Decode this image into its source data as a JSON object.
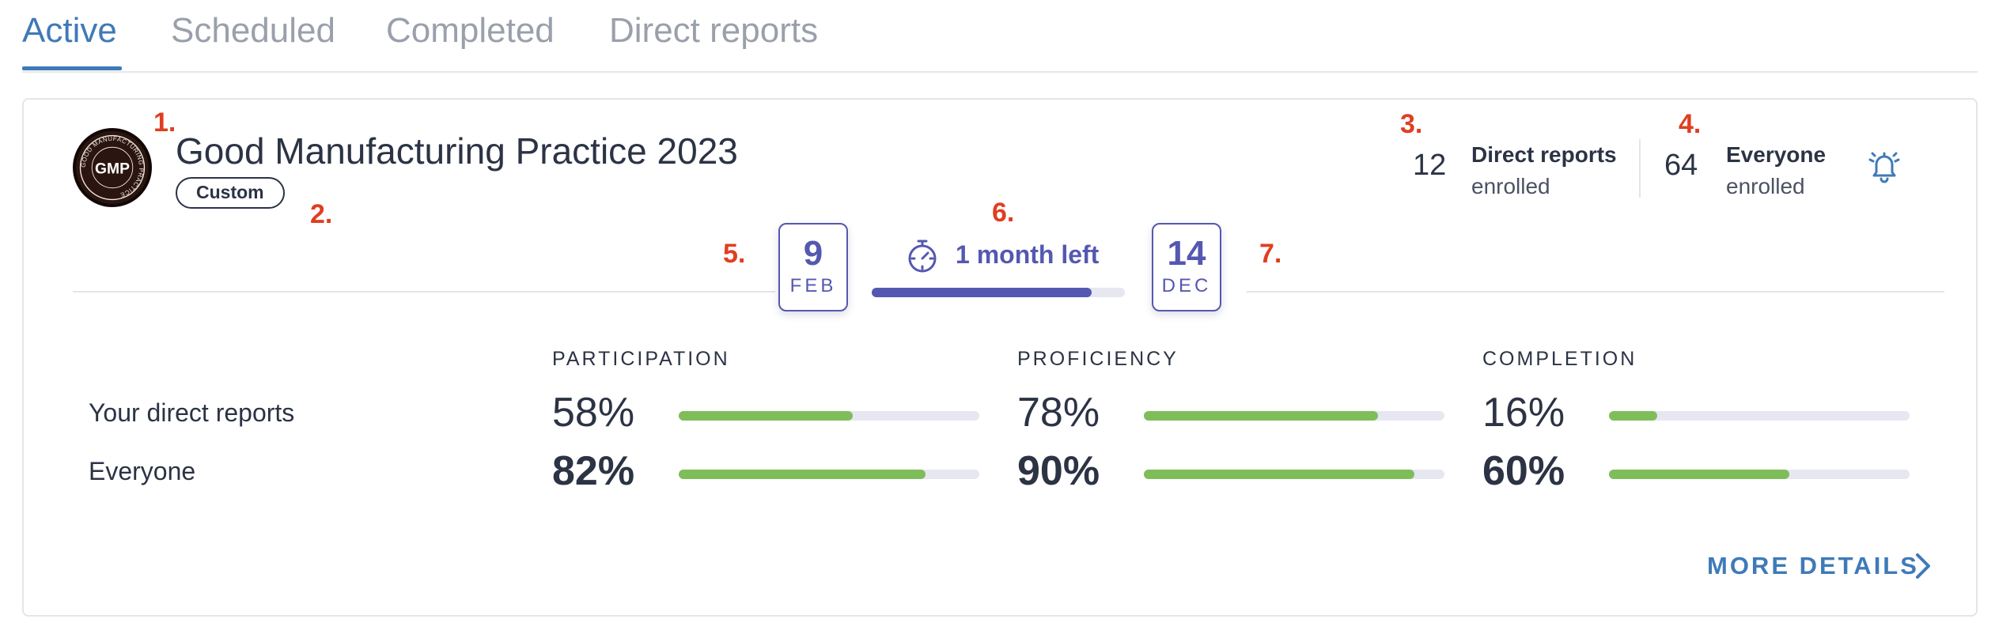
{
  "tabs": [
    {
      "label": "Active",
      "active": true
    },
    {
      "label": "Scheduled",
      "active": false
    },
    {
      "label": "Completed",
      "active": false
    },
    {
      "label": "Direct reports",
      "active": false
    }
  ],
  "course": {
    "title": "Good Manufacturing Practice 2023",
    "badge": "Custom",
    "logo": {
      "text": "GMP",
      "ring_text": "GOOD MANUFACTURING PRACTICE"
    }
  },
  "markers": [
    "1.",
    "2.",
    "3.",
    "4.",
    "5.",
    "6.",
    "7."
  ],
  "enrollment": {
    "direct_reports": {
      "count": "12",
      "label": "Direct reports",
      "sublabel": "enrolled"
    },
    "everyone": {
      "count": "64",
      "label": "Everyone",
      "sublabel": "enrolled"
    }
  },
  "icons": {
    "bell": "bell-icon",
    "timer": "stopwatch-icon",
    "chevron": "chevron-right-icon"
  },
  "timeline": {
    "start": {
      "day": "9",
      "month": "FEB"
    },
    "end": {
      "day": "14",
      "month": "DEC"
    },
    "time_left": "1 month left",
    "progress_fraction": 0.87
  },
  "metrics": {
    "columns": [
      "PARTICIPATION",
      "PROFICIENCY",
      "COMPLETION"
    ],
    "rows": [
      {
        "label": "Your direct reports",
        "values": [
          "58%",
          "78%",
          "16%"
        ],
        "fractions": [
          0.58,
          0.78,
          0.16
        ]
      },
      {
        "label": "Everyone",
        "values": [
          "82%",
          "90%",
          "60%"
        ],
        "fractions": [
          0.82,
          0.9,
          0.6
        ]
      }
    ]
  },
  "more_details": "MORE DETAILS",
  "colors": {
    "accent_blue": "#3f7ab8",
    "timeline_purple": "#5558b0",
    "bar_green": "#7fbd5a",
    "marker_red": "#e03e20"
  }
}
